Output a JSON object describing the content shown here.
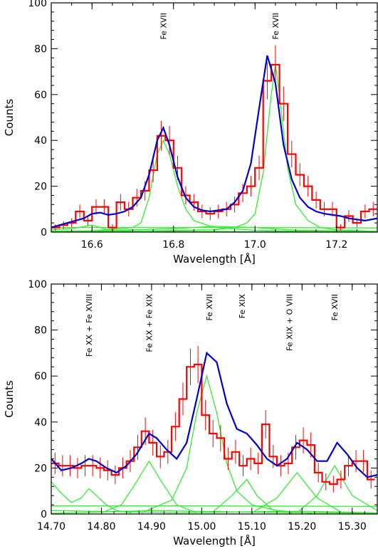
{
  "chart_data": [
    {
      "type": "line",
      "xlabel": "Wavelength [Å]",
      "ylabel": "Counts",
      "xlim": [
        16.5,
        17.3
      ],
      "ylim": [
        0,
        100
      ],
      "xticks": [
        16.6,
        16.8,
        17.0,
        17.2
      ],
      "xtick_labels": [
        "16.6",
        "16.8",
        "17.0",
        "17.2"
      ],
      "yticks": [
        0,
        20,
        40,
        60,
        80,
        100
      ],
      "ytick_labels": [
        "0",
        "20",
        "40",
        "60",
        "80",
        "100"
      ],
      "annotations": [
        {
          "text": "Fe XVII",
          "x": 16.775
        },
        {
          "text": "Fe XVII",
          "x": 17.05
        }
      ],
      "data_histogram": {
        "color": "#ff0000",
        "bin_width": 0.02,
        "bin_centers": [
          16.51,
          16.53,
          16.55,
          16.57,
          16.59,
          16.61,
          16.63,
          16.65,
          16.67,
          16.69,
          16.71,
          16.73,
          16.75,
          16.77,
          16.79,
          16.81,
          16.83,
          16.85,
          16.87,
          16.89,
          16.91,
          16.93,
          16.95,
          16.97,
          16.99,
          17.01,
          17.03,
          17.05,
          17.07,
          17.09,
          17.11,
          17.13,
          17.15,
          17.17,
          17.19,
          17.21,
          17.23,
          17.25,
          17.27,
          17.29
        ],
        "counts": [
          2,
          3,
          4,
          9,
          5,
          11,
          11,
          2,
          13,
          10,
          15,
          18,
          27,
          42,
          40,
          28,
          16,
          13,
          9,
          8,
          9,
          10,
          12,
          17,
          20,
          28,
          66,
          73,
          56,
          34,
          25,
          20,
          14,
          10,
          10,
          2,
          7,
          4,
          9,
          10
        ],
        "errors": [
          1.4,
          1.7,
          2,
          3,
          2.2,
          3.3,
          3.3,
          1.4,
          3.6,
          3.2,
          3.9,
          4.2,
          5.2,
          6.5,
          6.3,
          5.3,
          4,
          3.6,
          3,
          2.8,
          3,
          3.2,
          3.5,
          4.1,
          4.5,
          5.3,
          8.1,
          8.5,
          7.5,
          5.8,
          5,
          4.5,
          3.7,
          3.2,
          3.2,
          1.4,
          2.6,
          2,
          3,
          3.2
        ]
      },
      "model": {
        "color": "#0000cc",
        "x": [
          16.5,
          16.52,
          16.54,
          16.56,
          16.58,
          16.6,
          16.62,
          16.64,
          16.66,
          16.68,
          16.7,
          16.72,
          16.74,
          16.76,
          16.775,
          16.79,
          16.81,
          16.83,
          16.85,
          16.87,
          16.89,
          16.91,
          16.93,
          16.95,
          16.97,
          16.99,
          17.01,
          17.03,
          17.05,
          17.07,
          17.09,
          17.11,
          17.13,
          17.15,
          17.17,
          17.19,
          17.21,
          17.23,
          17.25,
          17.27,
          17.3
        ],
        "y": [
          2,
          3,
          4,
          5,
          6,
          8,
          8.5,
          7.5,
          8,
          9,
          11,
          15,
          25,
          40,
          45.5,
          38,
          24,
          15,
          11,
          9.5,
          9,
          9.5,
          10,
          13,
          18,
          30,
          54,
          77,
          65,
          38,
          23,
          15,
          11,
          9,
          8,
          7.5,
          7,
          6,
          5.5,
          5,
          6
        ]
      },
      "components": {
        "color": "#33ee33",
        "lines": [
          {
            "x": [
              16.5,
              16.6,
              16.7,
              16.72,
              16.74,
              16.76,
              16.775,
              16.79,
              16.81,
              16.83,
              16.85,
              16.9,
              17.0,
              17.1,
              17.3
            ],
            "y": [
              0.4,
              0.6,
              2,
              4,
              15,
              34,
              40,
              34,
              20,
              10,
              5,
              2,
              0.8,
              0.4,
              0.2
            ]
          },
          {
            "x": [
              16.5,
              16.7,
              16.9,
              16.95,
              16.98,
              17.0,
              17.02,
              17.04,
              17.05,
              17.06,
              17.08,
              17.1,
              17.13,
              17.16,
              17.2,
              17.3
            ],
            "y": [
              0.2,
              0.4,
              1,
              2,
              4,
              8,
              26,
              60,
              73,
              60,
              28,
              12,
              5,
              2,
              1,
              0.3
            ]
          },
          {
            "x": [
              16.5,
              16.55,
              16.6,
              16.62,
              16.64,
              16.7,
              16.8,
              17.0,
              17.3
            ],
            "y": [
              1,
              1.5,
              3,
              2,
              1,
              0.5,
              0.3,
              0.2,
              0.1
            ]
          },
          {
            "x": [
              16.5,
              16.6,
              16.7,
              16.8,
              16.9,
              17.0,
              17.1,
              17.3
            ],
            "y": [
              0,
              0.5,
              1,
              1.5,
              2.5,
              2,
              0.8,
              0.3
            ]
          },
          {
            "x": [
              16.5,
              17.0,
              17.3
            ],
            "y": [
              2,
              2,
              1.8
            ]
          }
        ]
      }
    },
    {
      "type": "line",
      "xlabel": "Wavelength [Å]",
      "ylabel": "Counts",
      "xlim": [
        14.7,
        15.35
      ],
      "ylim": [
        0,
        100
      ],
      "xticks": [
        14.7,
        14.8,
        14.9,
        15.0,
        15.1,
        15.2,
        15.3
      ],
      "xtick_labels": [
        "14.70",
        "14.80",
        "14.90",
        "15.00",
        "15.10",
        "15.20",
        "15.30"
      ],
      "yticks": [
        0,
        20,
        40,
        60,
        80,
        100
      ],
      "ytick_labels": [
        "0",
        "20",
        "40",
        "60",
        "80",
        "100"
      ],
      "annotations": [
        {
          "text": "Fe XX + Fe XVIII",
          "x": 14.775
        },
        {
          "text": "Fe XX + Fe XIX",
          "x": 14.895
        },
        {
          "text": "Fe XVII",
          "x": 15.015
        },
        {
          "text": "Fe XIX",
          "x": 15.08
        },
        {
          "text": "Fe XIX + O VIII",
          "x": 15.175
        },
        {
          "text": "Fe XVII",
          "x": 15.265
        }
      ],
      "data_histogram": {
        "color": "#ff0000",
        "bin_width": 0.015,
        "bin_centers": [
          14.7075,
          14.7225,
          14.7375,
          14.7525,
          14.7675,
          14.7825,
          14.7975,
          14.8125,
          14.8275,
          14.8425,
          14.8575,
          14.8725,
          14.8875,
          14.9025,
          14.9175,
          14.9325,
          14.9475,
          14.9625,
          14.9775,
          14.9925,
          15.0075,
          15.0225,
          15.0375,
          15.0525,
          15.0675,
          15.0825,
          15.0975,
          15.1125,
          15.1275,
          15.1425,
          15.1575,
          15.1725,
          15.1875,
          15.2025,
          15.2175,
          15.2325,
          15.2475,
          15.2625,
          15.2775,
          15.2925,
          15.3075,
          15.3225,
          15.3375
        ],
        "counts": [
          22,
          21,
          21,
          20,
          21,
          21,
          20,
          19,
          17,
          20,
          23,
          29,
          36,
          31,
          25,
          27,
          38,
          50,
          64,
          65,
          43,
          35,
          33,
          24,
          27,
          21,
          24,
          22,
          39,
          25,
          21,
          22,
          29,
          32,
          30,
          18,
          14,
          13,
          15,
          21,
          23,
          23,
          15
        ],
        "errors": [
          4.7,
          4.6,
          4.6,
          4.5,
          4.6,
          4.6,
          4.5,
          4.4,
          4.1,
          4.5,
          4.8,
          5.4,
          6,
          5.6,
          5,
          5.2,
          6.2,
          7.1,
          8,
          8.1,
          6.6,
          5.9,
          5.7,
          4.9,
          5.2,
          4.6,
          4.9,
          4.7,
          6.2,
          5,
          4.6,
          4.7,
          5.4,
          5.7,
          5.5,
          4.2,
          3.7,
          3.6,
          3.9,
          4.6,
          4.8,
          4.8,
          3.9
        ]
      },
      "model": {
        "color": "#0000cc",
        "x": [
          14.7,
          14.72,
          14.74,
          14.76,
          14.775,
          14.79,
          14.81,
          14.83,
          14.85,
          14.87,
          14.895,
          14.91,
          14.93,
          14.95,
          14.97,
          14.99,
          15.01,
          15.03,
          15.05,
          15.07,
          15.09,
          15.11,
          15.13,
          15.15,
          15.17,
          15.19,
          15.21,
          15.23,
          15.25,
          15.27,
          15.29,
          15.31,
          15.33,
          15.35
        ],
        "y": [
          24,
          19,
          20,
          22,
          24,
          23,
          20,
          18,
          21,
          26,
          35,
          33,
          28,
          24,
          31,
          50,
          70,
          66,
          48,
          37,
          35,
          30,
          24,
          21,
          24,
          31,
          28,
          23,
          23,
          31,
          26,
          20,
          16,
          17
        ]
      },
      "components": {
        "color": "#33ee33",
        "lines": [
          {
            "x": [
              14.7,
              14.72,
              14.74,
              14.76,
              14.775,
              14.79,
              14.81,
              14.83,
              14.86
            ],
            "y": [
              14,
              9,
              5,
              7,
              11,
              8,
              4,
              1.5,
              0.5
            ]
          },
          {
            "x": [
              14.8,
              14.84,
              14.87,
              14.895,
              14.92,
              14.95,
              14.99
            ],
            "y": [
              0.5,
              4,
              14,
              23,
              14,
              4,
              0.5
            ]
          },
          {
            "x": [
              14.88,
              14.94,
              14.97,
              14.99,
              15.01,
              15.03,
              15.05,
              15.07,
              15.1,
              15.15,
              15.22
            ],
            "y": [
              0.5,
              6,
              20,
              44,
              60,
              44,
              22,
              10,
              4,
              1.5,
              0.3
            ]
          },
          {
            "x": [
              15.02,
              15.06,
              15.09,
              15.11,
              15.14,
              15.18
            ],
            "y": [
              0.5,
              8,
              15,
              8,
              2,
              0.3
            ]
          },
          {
            "x": [
              15.1,
              15.15,
              15.19,
              15.23,
              15.28
            ],
            "y": [
              0.5,
              7,
              18,
              7,
              0.5
            ]
          },
          {
            "x": [
              15.19,
              15.23,
              15.265,
              15.3,
              15.35
            ],
            "y": [
              0.5,
              8,
              21,
              8,
              1.5
            ]
          },
          {
            "x": [
              14.7,
              15.0,
              15.35
            ],
            "y": [
              3.5,
              3.5,
              3.3
            ]
          },
          {
            "x": [
              14.7,
              14.9,
              15.1,
              15.3,
              15.35
            ],
            "y": [
              0.3,
              1.5,
              0.8,
              0.4,
              0.2
            ]
          },
          {
            "x": [
              14.7,
              14.95,
              15.2,
              15.35
            ],
            "y": [
              1.5,
              0.6,
              1.2,
              0.5
            ]
          }
        ]
      }
    }
  ]
}
